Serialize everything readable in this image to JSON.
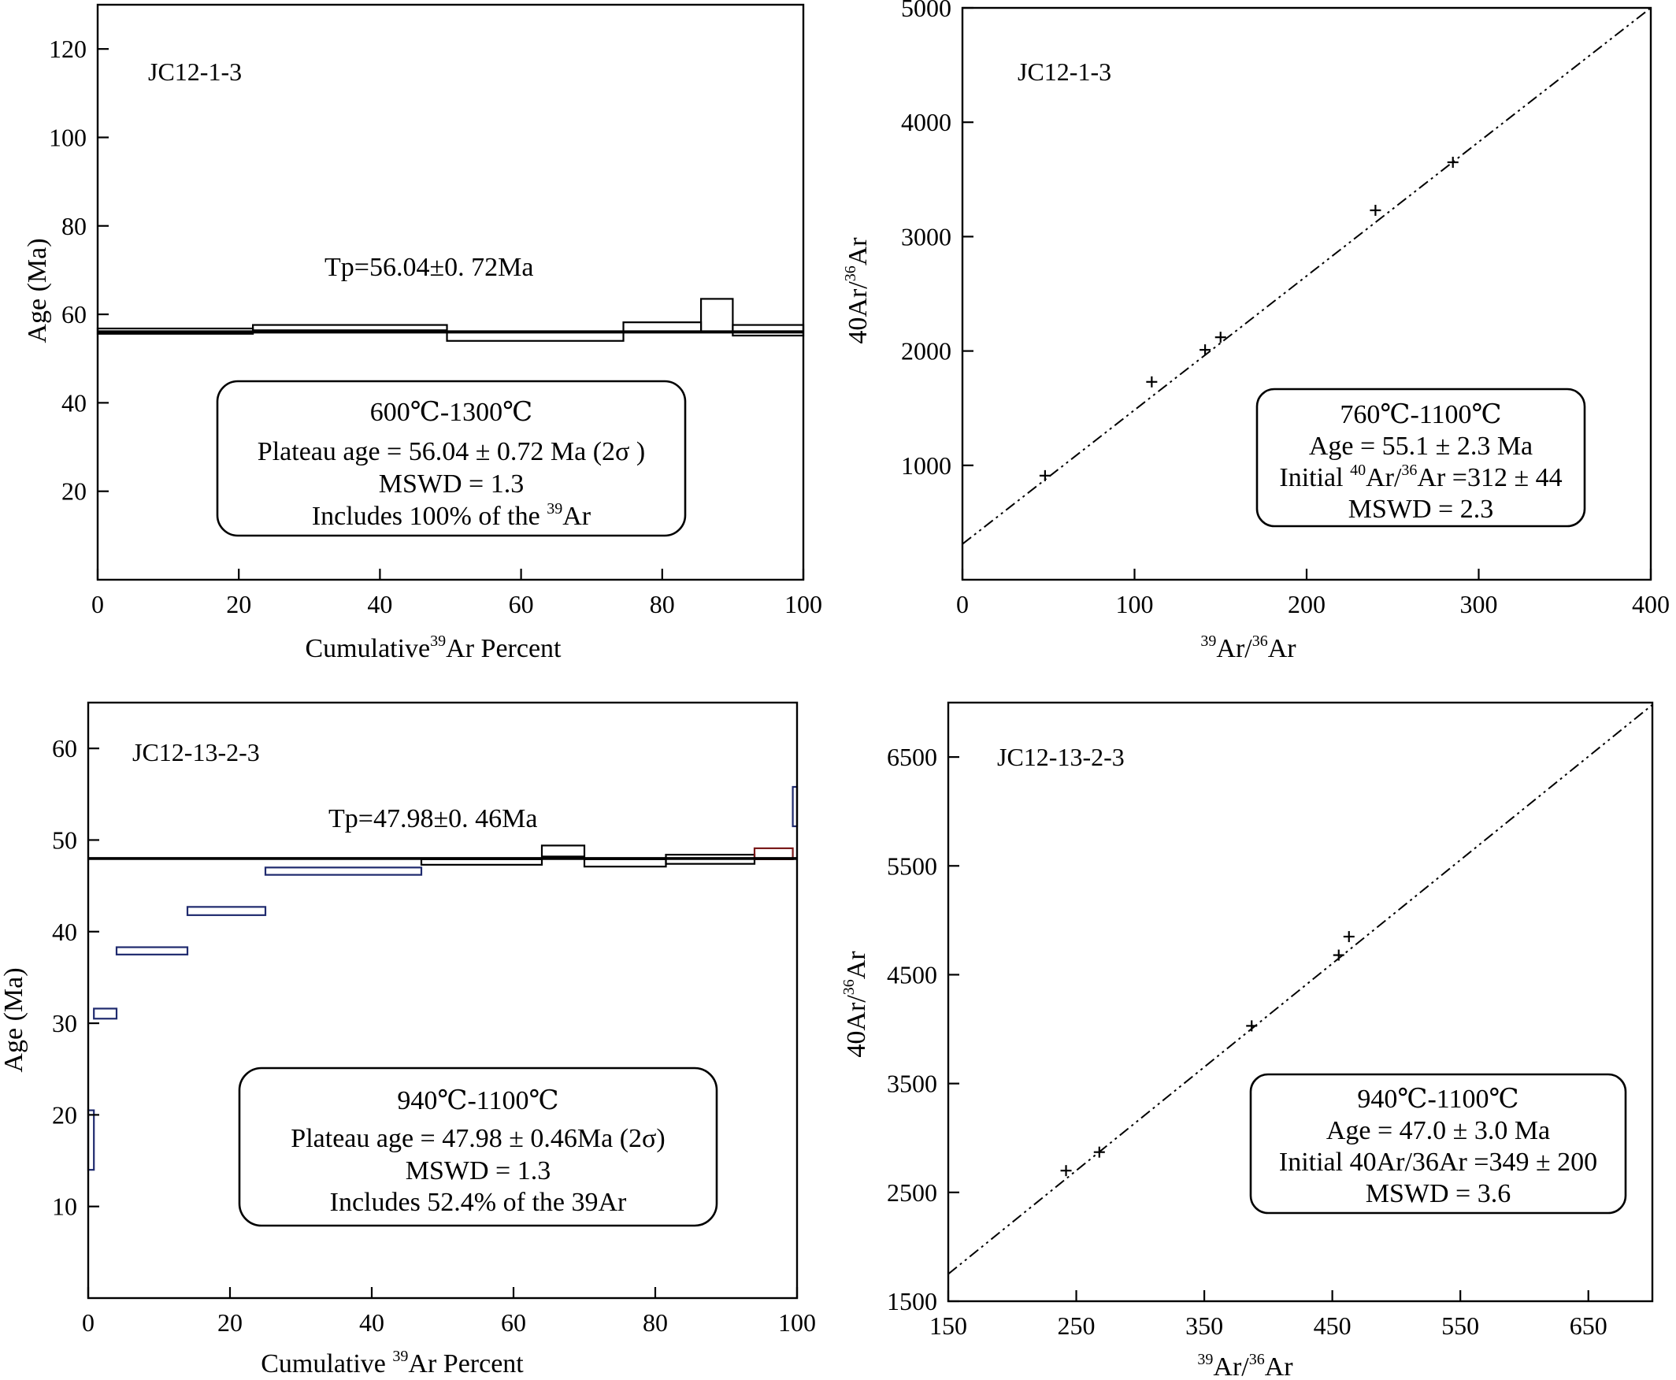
{
  "chart_data": [
    {
      "type": "line",
      "subtype": "age-spectrum",
      "sample": "JC12-1-3",
      "plateau_label": "Tp=56.04±0. 72Ma",
      "plateau_age": 56.04,
      "xlabel": {
        "before": "Cumulative",
        "sup": "39",
        "after": "Ar Percent"
      },
      "ylabel": "Age (Ma)",
      "xlim": [
        0,
        100
      ],
      "ylim": [
        0,
        130
      ],
      "xticks": [
        "0",
        "20",
        "40",
        "60",
        "80",
        "100"
      ],
      "yticks": [
        "20",
        "40",
        "60",
        "80",
        "100",
        "120"
      ],
      "ytick_values": [
        20,
        40,
        60,
        80,
        100,
        120
      ],
      "steps": [
        {
          "x": [
            0,
            22
          ],
          "y": [
            55.6,
            56.8
          ],
          "color": "#000000"
        },
        {
          "x": [
            22,
            49.5
          ],
          "y": [
            56.4,
            57.6
          ],
          "color": "#000000"
        },
        {
          "x": [
            49.5,
            74.5
          ],
          "y": [
            54.0,
            56.0
          ],
          "color": "#000000"
        },
        {
          "x": [
            74.5,
            85.5
          ],
          "y": [
            56.0,
            58.2
          ],
          "color": "#000000"
        },
        {
          "x": [
            85.5,
            90
          ],
          "y": [
            56.0,
            63.5
          ],
          "color": "#000000"
        },
        {
          "x": [
            90,
            100
          ],
          "y": [
            55.2,
            57.6
          ],
          "color": "#000000"
        }
      ],
      "box_lines": [
        {
          "text": "600℃-1300℃"
        },
        {
          "text": "Plateau age = 56.04 ± 0.72 Ma  (2σ )"
        },
        {
          "text": "MSWD = 1.3"
        },
        {
          "before": "Includes 100% of the ",
          "sup": "39",
          "after": "Ar"
        }
      ]
    },
    {
      "type": "scatter",
      "subtype": "isochron",
      "sample": "JC12-1-3",
      "xlabel": {
        "sup1": "39",
        "mid": "Ar/",
        "sup2": "36",
        "after": "Ar"
      },
      "ylabel": {
        "before": "40Ar/",
        "sup": "36",
        "after": "Ar"
      },
      "xlim": [
        0,
        400
      ],
      "ylim": [
        0,
        5000
      ],
      "xticks": [
        "0",
        "100",
        "200",
        "300",
        "400"
      ],
      "xtick_values": [
        0,
        100,
        200,
        300,
        400
      ],
      "yticks": [
        "1000",
        "2000",
        "3000",
        "4000",
        "5000"
      ],
      "ytick_values": [
        1000,
        2000,
        3000,
        4000,
        5000
      ],
      "points": [
        {
          "x": 48,
          "y": 910
        },
        {
          "x": 110,
          "y": 1730
        },
        {
          "x": 141,
          "y": 2010
        },
        {
          "x": 150,
          "y": 2120
        },
        {
          "x": 240,
          "y": 3230
        },
        {
          "x": 285,
          "y": 3650
        }
      ],
      "fit_line": {
        "x": [
          0,
          400
        ],
        "y": [
          312,
          5000
        ]
      },
      "box_lines": [
        {
          "text": "760℃-1100℃"
        },
        {
          "text": "Age = 55.1 ± 2.3 Ma"
        },
        {
          "before": "Initial ",
          "sup": "40",
          "mid": "Ar/",
          "sup2": "36",
          "after": "Ar =312 ± 44"
        },
        {
          "text": "MSWD = 2.3"
        }
      ]
    },
    {
      "type": "line",
      "subtype": "age-spectrum",
      "sample": "JC12-13-2-3",
      "plateau_label": "Tp=47.98±0. 46Ma",
      "plateau_age": 47.98,
      "xlabel": {
        "before": "Cumulative ",
        "sup": "39",
        "after": "Ar Percent"
      },
      "ylabel": "Age (Ma)",
      "xlim": [
        0,
        100
      ],
      "ylim": [
        0,
        65
      ],
      "xticks": [
        "0",
        "20",
        "40",
        "60",
        "80",
        "100"
      ],
      "yticks": [
        "10",
        "20",
        "30",
        "40",
        "50",
        "60"
      ],
      "ytick_values": [
        10,
        20,
        30,
        40,
        50,
        60
      ],
      "steps": [
        {
          "x": [
            0,
            0.8
          ],
          "y": [
            14,
            20.5
          ],
          "color": "#1f2a6e"
        },
        {
          "x": [
            0.8,
            4
          ],
          "y": [
            30.5,
            31.6
          ],
          "color": "#1f2a6e"
        },
        {
          "x": [
            4,
            14
          ],
          "y": [
            37.5,
            38.3
          ],
          "color": "#1f2a6e"
        },
        {
          "x": [
            14,
            25
          ],
          "y": [
            41.8,
            42.7
          ],
          "color": "#1f2a6e"
        },
        {
          "x": [
            25,
            47
          ],
          "y": [
            46.2,
            47.0
          ],
          "color": "#1f2a6e"
        },
        {
          "x": [
            47,
            64
          ],
          "y": [
            47.3,
            47.9
          ],
          "color": "#000000"
        },
        {
          "x": [
            64,
            70
          ],
          "y": [
            48.2,
            49.4
          ],
          "color": "#000000"
        },
        {
          "x": [
            70,
            81.5
          ],
          "y": [
            47.1,
            47.9
          ],
          "color": "#000000"
        },
        {
          "x": [
            81.5,
            94
          ],
          "y": [
            47.4,
            48.4
          ],
          "color": "#000000"
        },
        {
          "x": [
            94,
            99.4
          ],
          "y": [
            47.9,
            49.1
          ],
          "color": "#7a1a1a"
        },
        {
          "x": [
            99.4,
            100
          ],
          "y": [
            51.5,
            55.8
          ],
          "color": "#1f2a6e"
        }
      ],
      "box_lines": [
        {
          "text": "940℃-1100℃"
        },
        {
          "text": "Plateau age = 47.98 ± 0.46Ma  (2σ)"
        },
        {
          "text": "MSWD = 1.3"
        },
        {
          "text": "Includes 52.4% of the 39Ar"
        }
      ]
    },
    {
      "type": "scatter",
      "subtype": "isochron",
      "sample": "JC12-13-2-3",
      "xlabel": {
        "sup1": "39",
        "mid": "Ar/",
        "sup2": "36",
        "after": "Ar"
      },
      "ylabel": {
        "before": "40Ar/",
        "sup": "36",
        "after": "Ar"
      },
      "xlim": [
        150,
        700
      ],
      "ylim": [
        1500,
        7000
      ],
      "xticks": [
        "150",
        "250",
        "350",
        "450",
        "550",
        "650"
      ],
      "xtick_values": [
        150,
        250,
        350,
        450,
        550,
        650
      ],
      "yticks": [
        "1500",
        "2500",
        "3500",
        "4500",
        "5500",
        "6500"
      ],
      "ytick_values": [
        1500,
        2500,
        3500,
        4500,
        5500,
        6500
      ],
      "points": [
        {
          "x": 242,
          "y": 2700
        },
        {
          "x": 268,
          "y": 2870
        },
        {
          "x": 387,
          "y": 4030
        },
        {
          "x": 455,
          "y": 4680
        },
        {
          "x": 463,
          "y": 4850
        }
      ],
      "fit_line": {
        "x": [
          150,
          700
        ],
        "y": [
          1750,
          6980
        ]
      },
      "box_lines": [
        {
          "text": "940℃-1100℃"
        },
        {
          "text": "Age = 47.0 ± 3.0 Ma"
        },
        {
          "text": "Initial 40Ar/36Ar =349 ± 200"
        },
        {
          "text": "MSWD = 3.6"
        }
      ]
    }
  ]
}
